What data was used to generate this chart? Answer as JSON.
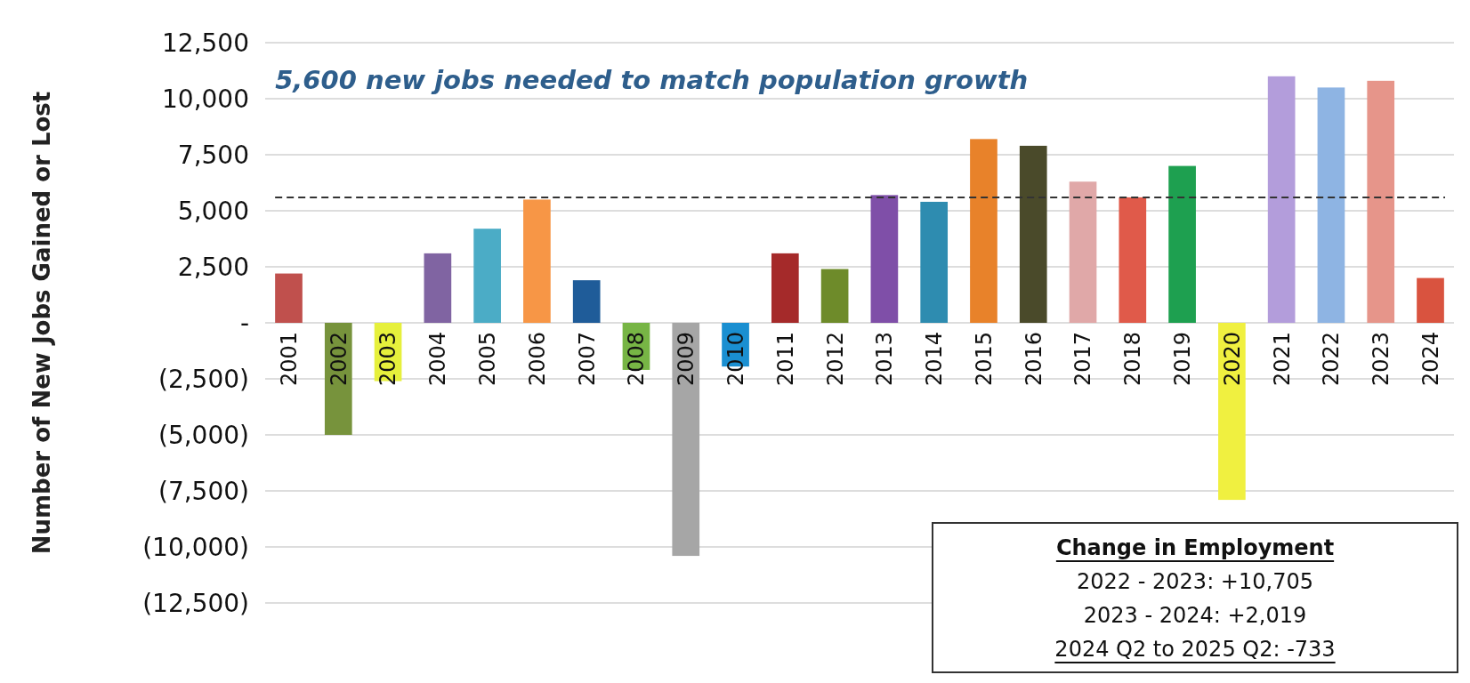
{
  "chart_data": {
    "type": "bar",
    "title": "5,600 new jobs needed to match population growth",
    "ylabel": "Number of New Jobs Gained or Lost",
    "categories": [
      "2001",
      "2002",
      "2003",
      "2004",
      "2005",
      "2006",
      "2007",
      "2008",
      "2009",
      "2010",
      "2011",
      "2012",
      "2013",
      "2014",
      "2015",
      "2016",
      "2017",
      "2018",
      "2019",
      "2020",
      "2021",
      "2022",
      "2023",
      "2024"
    ],
    "values": [
      2200,
      -5000,
      -2600,
      3100,
      4200,
      5500,
      1900,
      -2100,
      -10400,
      -1950,
      3100,
      2400,
      5700,
      5400,
      8200,
      7900,
      6300,
      5600,
      7000,
      -7900,
      11000,
      10500,
      10800,
      2000
    ],
    "colors": [
      "#c0504d",
      "#77933c",
      "#e6f03c",
      "#8064a2",
      "#4bacc6",
      "#f79646",
      "#1f5c99",
      "#77b545",
      "#a6a6a6",
      "#1a8fd1",
      "#a52a2a",
      "#6e8b2a",
      "#7f4fa8",
      "#2e8cb0",
      "#e8822a",
      "#4a4a2a",
      "#e0a8a8",
      "#e05a4a",
      "#1ea050",
      "#f0f040",
      "#b39ddb",
      "#8eb4e3",
      "#e6958a",
      "#d9533f"
    ],
    "ylim": [
      -12500,
      12500
    ],
    "yticks": [
      {
        "value": -12500,
        "label": "(12,500)"
      },
      {
        "value": -10000,
        "label": "(10,000)"
      },
      {
        "value": -7500,
        "label": "(7,500)"
      },
      {
        "value": -5000,
        "label": "(5,000)"
      },
      {
        "value": -2500,
        "label": "(2,500)"
      },
      {
        "value": 0,
        "label": "-"
      },
      {
        "value": 2500,
        "label": "2,500"
      },
      {
        "value": 5000,
        "label": "5,000"
      },
      {
        "value": 7500,
        "label": "7,500"
      },
      {
        "value": 10000,
        "label": "10,000"
      },
      {
        "value": 12500,
        "label": "12,500"
      }
    ],
    "grid": "y",
    "ref_lines": [
      {
        "axis": "y",
        "value": 5600,
        "color": "#333333",
        "line_style": "dashed"
      }
    ],
    "annotations": [
      "Change in Employment",
      "2022 - 2023: +10,705",
      "2023 - 2024: +2,019",
      "2024 Q2 to 2025 Q2: -733"
    ]
  }
}
